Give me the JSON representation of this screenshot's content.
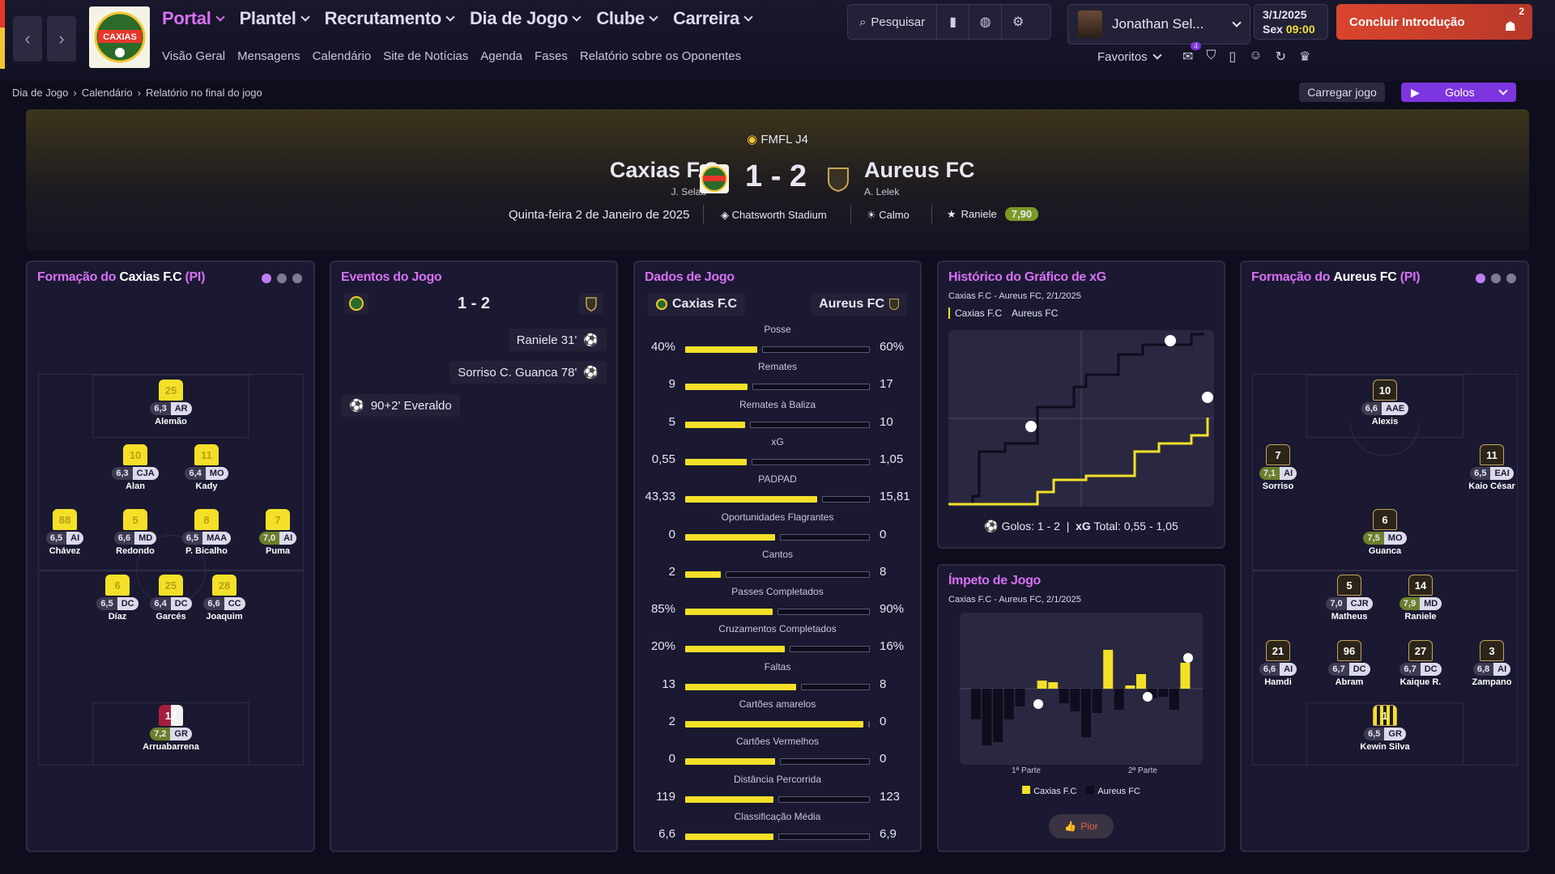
{
  "nav": {
    "main": [
      {
        "label": "Portal",
        "active": true
      },
      {
        "label": "Plantel"
      },
      {
        "label": "Recrutamento"
      },
      {
        "label": "Dia de Jogo"
      },
      {
        "label": "Clube"
      },
      {
        "label": "Carreira"
      }
    ],
    "sub": [
      "Visão Geral",
      "Mensagens",
      "Calendário",
      "Site de Notícias",
      "Agenda",
      "Fases",
      "Relatório sobre os Oponentes"
    ],
    "search_label": "Pesquisar",
    "user_name": "Jonathan Sel...",
    "date": "3/1/2025",
    "day": "Sex",
    "time": "09:00",
    "continue_label": "Concluir Introdução",
    "notif_count": "2",
    "favorites_label": "Favoritos",
    "msg_badge": "4"
  },
  "breadcrumb": [
    "Dia de Jogo",
    "Calendário",
    "Relatório no final do jogo"
  ],
  "actions": {
    "load_label": "Carregar jogo",
    "goals_label": "Golos"
  },
  "match": {
    "competition": "FMFL J4",
    "home": "Caxias F.C",
    "home_manager": "J. Selau",
    "away": "Aureus FC",
    "away_manager": "A. Lelek",
    "score": "1 - 2",
    "date": "Quinta-feira 2 de Janeiro de 2025",
    "stadium": "Chatsworth Stadium",
    "weather": "Calmo",
    "potm": "Raniele",
    "potm_rating": "7,90",
    "logo_text": "CAXIAS"
  },
  "home_lineup": {
    "title_prefix": "Formação do",
    "team": "Caxias F.C",
    "suffix": "(PI)",
    "players": [
      {
        "n": "25",
        "r": "6,3",
        "p": "AR",
        "name": "Alemão",
        "g": false
      },
      {
        "n": "10",
        "r": "6,3",
        "p": "CJA",
        "name": "Alan",
        "g": false
      },
      {
        "n": "11",
        "r": "6,4",
        "p": "MO",
        "name": "Kady",
        "g": false
      },
      {
        "n": "88",
        "r": "6,5",
        "p": "AI",
        "name": "Chávez",
        "g": false
      },
      {
        "n": "5",
        "r": "6,6",
        "p": "MD",
        "name": "Redondo",
        "g": false
      },
      {
        "n": "8",
        "r": "6,5",
        "p": "MAA",
        "name": "P. Bicalho",
        "g": false
      },
      {
        "n": "7",
        "r": "7,0",
        "p": "AI",
        "name": "Puma",
        "g": true
      },
      {
        "n": "6",
        "r": "6,5",
        "p": "DC",
        "name": "Díaz",
        "g": false
      },
      {
        "n": "25",
        "r": "6,4",
        "p": "DC",
        "name": "Garcés",
        "g": false
      },
      {
        "n": "28",
        "r": "6,6",
        "p": "CC",
        "name": "Joaquim",
        "g": false
      },
      {
        "n": "12",
        "r": "7,2",
        "p": "GR",
        "name": "Arruabarrena",
        "g": true
      }
    ]
  },
  "away_lineup": {
    "title_prefix": "Formação do",
    "team": "Aureus FC",
    "suffix": "(PI)",
    "players": [
      {
        "n": "10",
        "r": "6,6",
        "p": "AAE",
        "name": "Alexis",
        "g": false
      },
      {
        "n": "7",
        "r": "7,1",
        "p": "AI",
        "name": "Sorriso",
        "g": true
      },
      {
        "n": "11",
        "r": "6,5",
        "p": "EAI",
        "name": "Kaio César",
        "g": false
      },
      {
        "n": "6",
        "r": "7,5",
        "p": "MO",
        "name": "Guanca",
        "g": true
      },
      {
        "n": "5",
        "r": "7,0",
        "p": "CJR",
        "name": "Matheus",
        "g": false
      },
      {
        "n": "14",
        "r": "7,9",
        "p": "MD",
        "name": "Raniele",
        "g": true
      },
      {
        "n": "21",
        "r": "6,6",
        "p": "AI",
        "name": "Hamdi",
        "g": false
      },
      {
        "n": "96",
        "r": "6,7",
        "p": "DC",
        "name": "Abram",
        "g": false
      },
      {
        "n": "27",
        "r": "6,7",
        "p": "DC",
        "name": "Kaique R.",
        "g": false
      },
      {
        "n": "3",
        "r": "6,8",
        "p": "AI",
        "name": "Zampano",
        "g": false
      },
      {
        "n": "1",
        "r": "6,5",
        "p": "GR",
        "name": "Kewin Silva",
        "g": false
      }
    ]
  },
  "events": {
    "title": "Eventos do Jogo",
    "score": "1 - 2",
    "list": [
      {
        "text": "Raniele 31'",
        "side": "away"
      },
      {
        "text": "Sorriso C. Guanca 78'",
        "side": "away"
      },
      {
        "text": "90+2' Everaldo",
        "side": "home"
      }
    ]
  },
  "stats": {
    "title": "Dados de Jogo",
    "home": "Caxias F.C",
    "away": "Aureus FC",
    "rows": [
      {
        "label": "Posse",
        "h": "40%",
        "a": "60%",
        "hv": 40,
        "av": 60
      },
      {
        "label": "Remates",
        "h": "9",
        "a": "17",
        "hv": 9,
        "av": 17
      },
      {
        "label": "Remates à Baliza",
        "h": "5",
        "a": "10",
        "hv": 5,
        "av": 10
      },
      {
        "label": "xG",
        "h": "0,55",
        "a": "1,05",
        "hv": 0.55,
        "av": 1.05
      },
      {
        "label": "PADPAD",
        "h": "43,33",
        "a": "15,81",
        "hv": 43.33,
        "av": 15.81
      },
      {
        "label": "Oportunidades Flagrantes",
        "h": "0",
        "a": "0",
        "hv": 0,
        "av": 0
      },
      {
        "label": "Cantos",
        "h": "2",
        "a": "8",
        "hv": 2,
        "av": 8
      },
      {
        "label": "Passes Completados",
        "h": "85%",
        "a": "90%",
        "hv": 85,
        "av": 90
      },
      {
        "label": "Cruzamentos Completados",
        "h": "20%",
        "a": "16%",
        "hv": 20,
        "av": 16
      },
      {
        "label": "Faltas",
        "h": "13",
        "a": "8",
        "hv": 13,
        "av": 8
      },
      {
        "label": "Cartões amarelos",
        "h": "2",
        "a": "0",
        "hv": 2,
        "av": 0
      },
      {
        "label": "Cartões Vermelhos",
        "h": "0",
        "a": "0",
        "hv": 0,
        "av": 0
      },
      {
        "label": "Distância Percorrida",
        "h": "119",
        "a": "123",
        "hv": 119,
        "av": 123
      },
      {
        "label": "Classificação Média",
        "h": "6,6",
        "a": "6,9",
        "hv": 6.6,
        "av": 6.9
      }
    ]
  },
  "xg": {
    "title": "Histórico do Gráfico de xG",
    "subtitle": "Caxias F.C - Aureus FC, 2/1/2025",
    "legend_home": "Caxias F.C",
    "legend_away": "Aureus FC",
    "goals_label": "Golos: 1 - 2",
    "xg_label": "xG",
    "xg_total": "Total: 0,55 - 1,05"
  },
  "momentum": {
    "title": "Ímpeto de Jogo",
    "subtitle": "Caxias F.C - Aureus FC, 2/1/2025",
    "first_half": "1ª Parte",
    "second_half": "2ª Parte",
    "legend_home": "Caxias F.C",
    "legend_away": "Aureus FC",
    "button": "Pior"
  },
  "colors": {
    "accent": "#d970f5",
    "yellow": "#f4e028",
    "red": "#d9452d"
  }
}
